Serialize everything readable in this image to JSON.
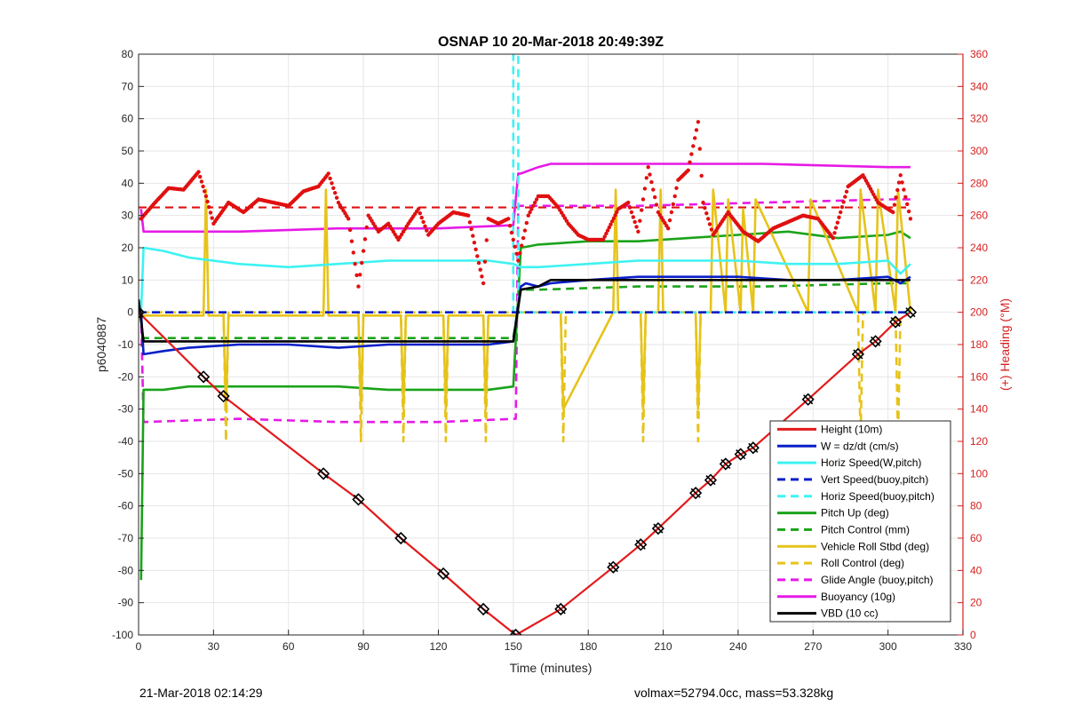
{
  "footer": {
    "left": "21-Mar-2018 02:14:29",
    "right": "volmax=52794.0cc, mass=53.328kg"
  },
  "chart_data": {
    "type": "line",
    "title": "OSNAP 10 20-Mar-2018 20:49:39Z",
    "xlabel": "Time (minutes)",
    "ylabel": "p6040887",
    "y2label": "(+) Heading (°M)",
    "xlim": [
      0,
      330
    ],
    "ylim": [
      -100,
      80
    ],
    "y2lim": [
      0,
      360
    ],
    "xticks": [
      0,
      30,
      60,
      90,
      120,
      150,
      180,
      210,
      240,
      270,
      300,
      330
    ],
    "yticks": [
      -100,
      -90,
      -80,
      -70,
      -60,
      -50,
      -40,
      -30,
      -20,
      -10,
      0,
      10,
      20,
      30,
      40,
      50,
      60,
      70,
      80
    ],
    "y2ticks": [
      0,
      20,
      40,
      60,
      80,
      100,
      120,
      140,
      160,
      180,
      200,
      220,
      240,
      260,
      280,
      300,
      320,
      340,
      360
    ],
    "grid": true,
    "legend_position": "bottom-right",
    "colors": {
      "red": "#e31a1c",
      "blue": "#0a1fc8",
      "cyan": "#3ef2f2",
      "green": "#1aa31a",
      "yellow": "#e6c31a",
      "magenta": "#e61ae6",
      "black": "#000000",
      "heading_dots": "#e01010",
      "right_axis": "#d62020"
    },
    "series": [
      {
        "name": "Height (10m)",
        "color": "red",
        "style": "solid",
        "x": [
          0,
          26,
          34,
          74,
          88,
          105,
          122,
          138,
          151,
          169,
          190,
          201,
          208,
          223,
          229,
          235,
          241,
          246,
          268,
          288,
          295,
          303,
          309
        ],
        "y": [
          0,
          -20,
          -26,
          -50,
          -58,
          -70,
          -81,
          -92,
          -100,
          -92,
          -79,
          -72,
          -67,
          -56,
          -52,
          -47,
          -44,
          -42,
          -27,
          -13,
          -9,
          -3,
          0
        ],
        "markers_x": [
          0,
          26,
          34,
          74,
          88,
          105,
          122,
          138,
          151,
          169,
          190,
          201,
          208,
          223,
          229,
          235,
          241,
          246,
          268,
          288,
          295,
          303,
          309
        ]
      },
      {
        "name": "W = dz/dt (cm/s)",
        "color": "blue",
        "style": "solid",
        "x": [
          1,
          2,
          10,
          20,
          40,
          60,
          80,
          100,
          120,
          140,
          150,
          153,
          155,
          160,
          165,
          180,
          200,
          220,
          240,
          260,
          280,
          300,
          305,
          309
        ],
        "y": [
          0,
          -13,
          -12,
          -11,
          -10,
          -10,
          -11,
          -10,
          -10,
          -10,
          -9,
          8,
          9,
          8,
          9,
          10,
          11,
          11,
          11,
          10,
          10,
          11,
          9,
          11
        ]
      },
      {
        "name": "Horiz Speed(W,pitch)",
        "color": "cyan",
        "style": "solid",
        "x": [
          1,
          2,
          10,
          20,
          40,
          60,
          80,
          100,
          120,
          140,
          150,
          153,
          160,
          180,
          200,
          220,
          240,
          260,
          280,
          300,
          305,
          309
        ],
        "y": [
          0,
          20,
          19,
          17,
          15,
          14,
          15,
          16,
          16,
          16,
          15,
          14,
          14,
          15,
          16,
          16,
          16,
          15,
          15,
          16,
          12,
          15
        ]
      },
      {
        "name": "Vert Speed(buoy,pitch)",
        "color": "blue",
        "style": "dashed",
        "x": [
          0,
          309
        ],
        "y": [
          0,
          0
        ]
      },
      {
        "name": "Horiz Speed(buoy,pitch)",
        "color": "cyan",
        "style": "dashed",
        "x": [
          0,
          150,
          150,
          151,
          152,
          152,
          309
        ],
        "y": [
          0,
          0,
          80,
          80,
          80,
          0,
          0
        ]
      },
      {
        "name": "Pitch Up (deg)",
        "color": "green",
        "style": "solid",
        "x": [
          1,
          2,
          10,
          20,
          40,
          60,
          80,
          100,
          120,
          140,
          150,
          153,
          160,
          180,
          200,
          220,
          240,
          260,
          280,
          300,
          305,
          309
        ],
        "y": [
          -83,
          -24,
          -24,
          -23,
          -23,
          -23,
          -23,
          -24,
          -24,
          -24,
          -23,
          20,
          21,
          22,
          22,
          23,
          24,
          25,
          23,
          24,
          25,
          23
        ]
      },
      {
        "name": "Pitch Control (mm)",
        "color": "green",
        "style": "dashed",
        "x": [
          1,
          150,
          153,
          160,
          200,
          250,
          300,
          309
        ],
        "y": [
          -8,
          -8,
          7,
          7,
          8,
          8,
          9,
          9
        ]
      },
      {
        "name": "Vehicle Roll Stbd (deg)",
        "color": "yellow",
        "style": "solid",
        "x": [
          1,
          26,
          27,
          28,
          34,
          35,
          36,
          74,
          75,
          76,
          88,
          89,
          90,
          105,
          106,
          107,
          122,
          123,
          124,
          138,
          139,
          140,
          151,
          152,
          169,
          170,
          190,
          191,
          192,
          201,
          202,
          203,
          208,
          209,
          210,
          223,
          224,
          225,
          229,
          230,
          235,
          236,
          241,
          242,
          246,
          247,
          268,
          269,
          288,
          289,
          295,
          296,
          303,
          304,
          309
        ],
        "y": [
          -1,
          -1,
          38,
          -1,
          -1,
          -30,
          -1,
          -1,
          38,
          -1,
          -1,
          -30,
          -1,
          -1,
          -30,
          -1,
          -1,
          -30,
          -1,
          -1,
          -30,
          -1,
          -1,
          0,
          0,
          -30,
          0,
          38,
          0,
          0,
          -30,
          0,
          0,
          38,
          0,
          0,
          -30,
          0,
          0,
          38,
          0,
          35,
          0,
          32,
          0,
          35,
          0,
          35,
          0,
          38,
          0,
          38,
          0,
          38,
          0
        ]
      },
      {
        "name": "Roll Control (deg)",
        "color": "yellow",
        "style": "dashed",
        "x": [
          1,
          34,
          35,
          36,
          88,
          89,
          90,
          105,
          106,
          107,
          122,
          123,
          124,
          138,
          139,
          140,
          151,
          169,
          170,
          171,
          201,
          202,
          203,
          223,
          224,
          225,
          288,
          289,
          290,
          303,
          304,
          305,
          309
        ],
        "y": [
          0,
          0,
          -40,
          0,
          0,
          -40,
          0,
          0,
          -40,
          0,
          0,
          -40,
          0,
          0,
          -40,
          0,
          0,
          0,
          -40,
          0,
          0,
          -40,
          0,
          0,
          -40,
          0,
          0,
          -40,
          0,
          0,
          -40,
          0,
          0
        ]
      },
      {
        "name": "Glide Angle (buoy,pitch)",
        "color": "magenta",
        "style": "dashed",
        "x": [
          1,
          2,
          40,
          80,
          120,
          151,
          152,
          160,
          200,
          250,
          300,
          309
        ],
        "y": [
          0,
          -34,
          -33,
          -34,
          -34,
          -33,
          33,
          33,
          33,
          34,
          35,
          35
        ]
      },
      {
        "name": "Buoyancy (10g)",
        "color": "magenta",
        "style": "solid",
        "x": [
          1,
          2,
          40,
          80,
          120,
          150,
          152,
          153,
          160,
          165,
          200,
          250,
          300,
          309
        ],
        "y": [
          32,
          25,
          25,
          26,
          26,
          27,
          43,
          43,
          45,
          46,
          46,
          46,
          45,
          45
        ]
      },
      {
        "name": "VBD (10 cc)",
        "color": "black",
        "style": "solid",
        "x": [
          0,
          2,
          40,
          80,
          120,
          150,
          153,
          160,
          165,
          200,
          250,
          300,
          309
        ],
        "y": [
          4,
          -9,
          -9,
          -9,
          -9,
          -9,
          7,
          8,
          10,
          10,
          10,
          10,
          10
        ]
      }
    ],
    "heading": {
      "name": "Heading",
      "axis": "right",
      "style": "dots",
      "mean": 265,
      "x": [
        1,
        6,
        12,
        18,
        24,
        27,
        30,
        36,
        42,
        48,
        54,
        60,
        66,
        72,
        76,
        80,
        84,
        88,
        92,
        96,
        100,
        104,
        108,
        112,
        116,
        120,
        126,
        132,
        138,
        140,
        144,
        148,
        152,
        156,
        160,
        164,
        168,
        172,
        176,
        180,
        186,
        192,
        196,
        200,
        204,
        208,
        212,
        216,
        220,
        224,
        226,
        230,
        236,
        242,
        248,
        254,
        260,
        266,
        272,
        278,
        284,
        290,
        296,
        302,
        305,
        309
      ],
      "y": [
        258,
        267,
        277,
        276,
        287,
        272,
        255,
        268,
        262,
        270,
        268,
        266,
        275,
        278,
        286,
        268,
        258,
        216,
        260,
        250,
        255,
        245,
        255,
        264,
        248,
        255,
        262,
        260,
        218,
        258,
        255,
        258,
        232,
        260,
        272,
        272,
        265,
        255,
        248,
        245,
        245,
        264,
        268,
        250,
        290,
        262,
        252,
        282,
        288,
        318,
        268,
        248,
        262,
        250,
        244,
        252,
        256,
        260,
        258,
        246,
        278,
        285,
        268,
        262,
        285,
        258
      ]
    }
  }
}
